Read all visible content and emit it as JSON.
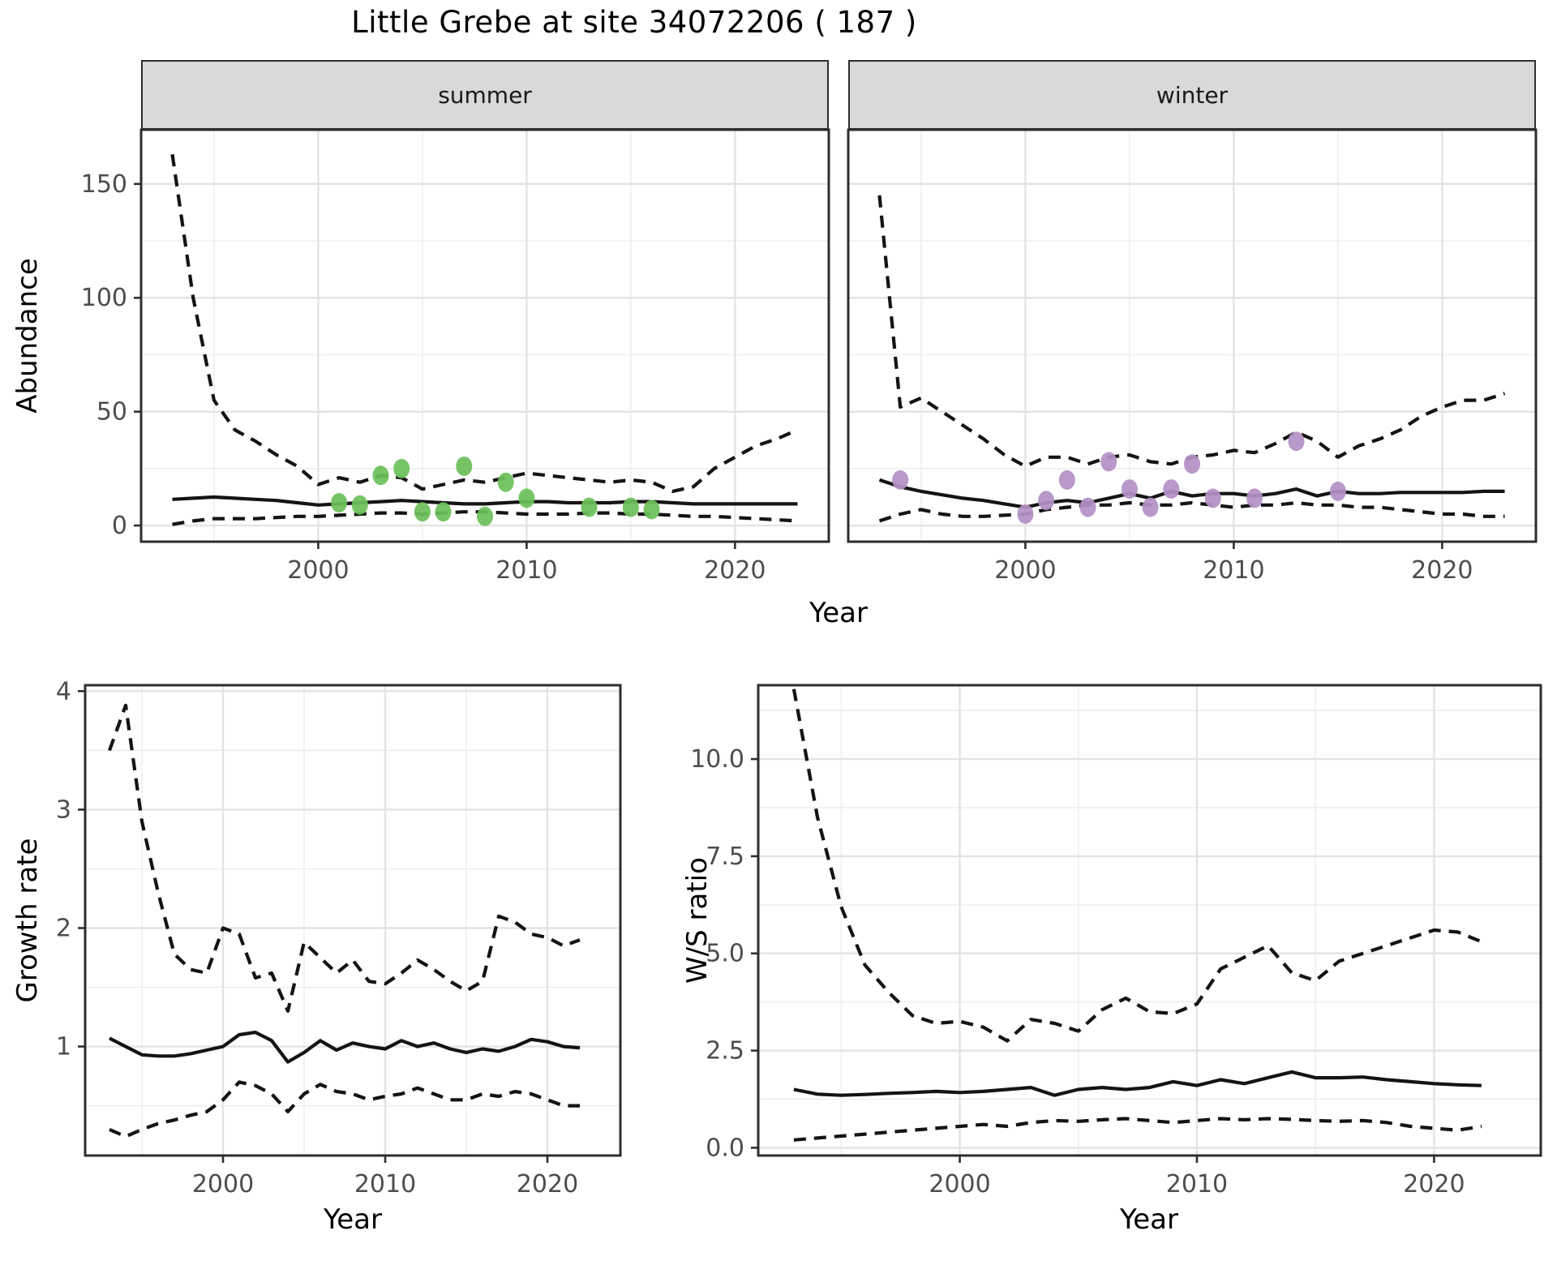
{
  "title": "Little Grebe at site 34072206 ( 187 )",
  "colors": {
    "summer_point": "#6CBF5A",
    "winter_point": "#B391C5",
    "line": "#141414",
    "grid_major": "#E3E3E3",
    "grid_minor": "#EFEFEF",
    "strip_bg": "#D9D9D9",
    "tick_text": "#4D4D4D",
    "border": "#2e2e2e"
  },
  "chart_data": [
    {
      "id": "abundance-summer",
      "type": "line",
      "facet_label": "summer",
      "xlabel": "Year",
      "ylabel": "Abundance",
      "x_range": [
        1991.5,
        2024.5
      ],
      "y_range": [
        -7.1,
        173.8
      ],
      "x_major": [
        2000,
        2010,
        2020
      ],
      "x_tick_labels": [
        "2000",
        "2010",
        "2020"
      ],
      "x_minor": [
        1995,
        2005,
        2015
      ],
      "y_major": [
        0,
        50,
        100,
        150
      ],
      "y_tick_labels": [
        "0",
        "50",
        "100",
        "150"
      ],
      "y_minor": [
        25,
        75,
        125
      ],
      "x": [
        1993,
        1994,
        1995,
        1996,
        1997,
        1998,
        1999,
        2000,
        2001,
        2002,
        2003,
        2004,
        2005,
        2006,
        2007,
        2008,
        2009,
        2010,
        2011,
        2012,
        2013,
        2014,
        2015,
        2016,
        2017,
        2018,
        2019,
        2020,
        2021,
        2022,
        2023
      ],
      "series": [
        {
          "name": "upper-ci",
          "line": "dashed",
          "values": [
            163,
            100,
            55,
            42,
            37,
            31,
            26,
            18,
            21,
            19,
            22,
            21,
            16,
            18,
            20,
            19,
            21,
            23,
            22,
            21,
            20,
            19,
            20,
            19,
            15,
            17,
            25,
            30,
            35,
            38,
            42
          ]
        },
        {
          "name": "median",
          "line": "solid",
          "values": [
            11.5,
            12,
            12.5,
            12,
            11.5,
            11,
            10,
            9,
            9.5,
            10,
            10.5,
            11,
            10.5,
            10,
            9.5,
            9.5,
            10,
            10.5,
            10.5,
            10,
            10,
            10,
            10.5,
            10.5,
            10,
            9.5,
            9.5,
            9.5,
            9.5,
            9.5,
            9.5
          ]
        },
        {
          "name": "lower-ci",
          "line": "dashed",
          "values": [
            0.5,
            2,
            3,
            3,
            3,
            3.5,
            4,
            4,
            4.5,
            5,
            5.5,
            5.5,
            5,
            5.5,
            6,
            6,
            5.5,
            5,
            5,
            5,
            5.5,
            5.5,
            5,
            5,
            4.5,
            4,
            4,
            3.5,
            3,
            2.5,
            2
          ]
        }
      ],
      "points": {
        "name": "observed-count",
        "color": "#6CBF5A",
        "x": [
          2001,
          2002,
          2003,
          2004,
          2005,
          2006,
          2007,
          2008,
          2009,
          2010,
          2013,
          2015,
          2016
        ],
        "y": [
          10,
          9,
          22,
          25,
          6,
          6,
          26,
          4,
          19,
          12,
          8,
          8,
          7
        ]
      }
    },
    {
      "id": "abundance-winter",
      "type": "line",
      "facet_label": "winter",
      "xlabel": "Year",
      "ylabel": "Abundance",
      "x_range": [
        1991.5,
        2024.5
      ],
      "y_range": [
        -7.1,
        173.8
      ],
      "x_major": [
        2000,
        2010,
        2020
      ],
      "x_tick_labels": [
        "2000",
        "2010",
        "2020"
      ],
      "x_minor": [
        1995,
        2005,
        2015
      ],
      "y_major": [
        0,
        50,
        100,
        150
      ],
      "y_tick_labels": [
        "0",
        "50",
        "100",
        "150"
      ],
      "y_minor": [
        25,
        75,
        125
      ],
      "x": [
        1993,
        1994,
        1995,
        1996,
        1997,
        1998,
        1999,
        2000,
        2001,
        2002,
        2003,
        2004,
        2005,
        2006,
        2007,
        2008,
        2009,
        2010,
        2011,
        2012,
        2013,
        2014,
        2015,
        2016,
        2017,
        2018,
        2019,
        2020,
        2021,
        2022,
        2023
      ],
      "series": [
        {
          "name": "upper-ci",
          "line": "dashed",
          "values": [
            145,
            52,
            56,
            50,
            44,
            38,
            31,
            26,
            30,
            30,
            27,
            30,
            31,
            28,
            27,
            30,
            31,
            33,
            32,
            36,
            41,
            37,
            30,
            35,
            38,
            42,
            48,
            52,
            55,
            55,
            58
          ]
        },
        {
          "name": "median",
          "line": "solid",
          "values": [
            20,
            17,
            15,
            13.5,
            12,
            11,
            9.5,
            8,
            10,
            11,
            10,
            12,
            14,
            12,
            15,
            13,
            14,
            14,
            13,
            14,
            16,
            13,
            15,
            14,
            14,
            14.5,
            14.5,
            14.5,
            14.5,
            15,
            15
          ]
        },
        {
          "name": "lower-ci",
          "line": "dashed",
          "values": [
            2,
            5,
            7,
            5,
            4,
            4,
            4.5,
            5,
            7,
            8,
            9,
            9,
            10,
            9,
            9,
            10,
            9,
            8,
            9,
            9,
            10,
            9,
            9,
            8,
            8,
            7,
            6,
            5,
            5,
            4,
            4
          ]
        }
      ],
      "points": {
        "name": "observed-count",
        "color": "#B391C5",
        "x": [
          1994,
          2000,
          2001,
          2002,
          2003,
          2004,
          2005,
          2006,
          2007,
          2008,
          2009,
          2011,
          2013,
          2015
        ],
        "y": [
          20,
          5,
          11,
          20,
          8,
          28,
          16,
          8,
          16,
          27,
          12,
          12,
          37,
          15
        ]
      }
    },
    {
      "id": "growth-rate",
      "type": "line",
      "facet_label": "",
      "xlabel": "Year",
      "ylabel": "Growth rate",
      "x_range": [
        1991.5,
        2024.5
      ],
      "y_range": [
        0.08,
        4.05
      ],
      "x_major": [
        2000,
        2010,
        2020
      ],
      "x_tick_labels": [
        "2000",
        "2010",
        "2020"
      ],
      "x_minor": [
        1995,
        2005,
        2015
      ],
      "y_major": [
        1,
        2,
        3,
        4
      ],
      "y_tick_labels": [
        "1",
        "2",
        "3",
        "4"
      ],
      "y_minor": [
        0.5,
        1.5,
        2.5,
        3.5
      ],
      "x": [
        1993,
        1994,
        1995,
        1996,
        1997,
        1998,
        1999,
        2000,
        2001,
        2002,
        2003,
        2004,
        2005,
        2006,
        2007,
        2008,
        2009,
        2010,
        2011,
        2012,
        2013,
        2014,
        2015,
        2016,
        2017,
        2018,
        2019,
        2020,
        2021,
        2022
      ],
      "series": [
        {
          "name": "upper-ci",
          "line": "dashed",
          "values": [
            3.5,
            3.88,
            2.9,
            2.3,
            1.78,
            1.65,
            1.62,
            2.0,
            1.95,
            1.58,
            1.62,
            1.3,
            1.88,
            1.75,
            1.62,
            1.73,
            1.55,
            1.53,
            1.62,
            1.73,
            1.65,
            1.55,
            1.47,
            1.55,
            2.1,
            2.05,
            1.95,
            1.92,
            1.85,
            1.9
          ]
        },
        {
          "name": "median",
          "line": "solid",
          "values": [
            1.07,
            1.0,
            0.93,
            0.92,
            0.92,
            0.94,
            0.97,
            1.0,
            1.1,
            1.12,
            1.05,
            0.87,
            0.95,
            1.05,
            0.97,
            1.03,
            1.0,
            0.98,
            1.05,
            1.0,
            1.03,
            0.98,
            0.95,
            0.98,
            0.96,
            1.0,
            1.06,
            1.04,
            1.0,
            0.99
          ]
        },
        {
          "name": "lower-ci",
          "line": "dashed",
          "values": [
            0.3,
            0.24,
            0.3,
            0.35,
            0.38,
            0.42,
            0.45,
            0.55,
            0.7,
            0.67,
            0.6,
            0.45,
            0.6,
            0.68,
            0.62,
            0.6,
            0.55,
            0.58,
            0.6,
            0.65,
            0.6,
            0.55,
            0.55,
            0.6,
            0.58,
            0.62,
            0.6,
            0.55,
            0.5,
            0.5
          ]
        }
      ],
      "points": null
    },
    {
      "id": "ws-ratio",
      "type": "line",
      "facet_label": "",
      "xlabel": "Year",
      "ylabel": "W/S ratio",
      "x_range": [
        1991.5,
        2024.5
      ],
      "y_range": [
        -0.2,
        11.9
      ],
      "x_major": [
        2000,
        2010,
        2020
      ],
      "x_tick_labels": [
        "2000",
        "2010",
        "2020"
      ],
      "x_minor": [
        1995,
        2005,
        2015
      ],
      "y_major": [
        0,
        2.5,
        5,
        7.5,
        10
      ],
      "y_tick_labels": [
        "0.0",
        "2.5",
        "5.0",
        "7.5",
        "10.0"
      ],
      "y_minor": [
        1.25,
        3.75,
        6.25,
        8.75,
        11.25
      ],
      "x": [
        1993,
        1994,
        1995,
        1996,
        1997,
        1998,
        1999,
        2000,
        2001,
        2002,
        2003,
        2004,
        2005,
        2006,
        2007,
        2008,
        2009,
        2010,
        2011,
        2012,
        2013,
        2014,
        2015,
        2016,
        2017,
        2018,
        2019,
        2020,
        2021,
        2022
      ],
      "series": [
        {
          "name": "upper-ci",
          "line": "dashed",
          "values": [
            11.8,
            8.5,
            6.2,
            4.7,
            4.0,
            3.4,
            3.2,
            3.25,
            3.1,
            2.75,
            3.3,
            3.2,
            3.0,
            3.55,
            3.85,
            3.5,
            3.45,
            3.7,
            4.6,
            4.9,
            5.2,
            4.5,
            4.3,
            4.8,
            5.0,
            5.2,
            5.4,
            5.6,
            5.55,
            5.3
          ]
        },
        {
          "name": "median",
          "line": "solid",
          "values": [
            1.5,
            1.38,
            1.35,
            1.37,
            1.4,
            1.42,
            1.45,
            1.42,
            1.45,
            1.5,
            1.55,
            1.35,
            1.5,
            1.55,
            1.5,
            1.55,
            1.7,
            1.6,
            1.75,
            1.65,
            1.8,
            1.95,
            1.8,
            1.8,
            1.82,
            1.75,
            1.7,
            1.65,
            1.62,
            1.6
          ]
        },
        {
          "name": "lower-ci",
          "line": "dashed",
          "values": [
            0.2,
            0.25,
            0.3,
            0.35,
            0.4,
            0.45,
            0.5,
            0.55,
            0.6,
            0.55,
            0.65,
            0.7,
            0.68,
            0.72,
            0.75,
            0.7,
            0.65,
            0.7,
            0.75,
            0.72,
            0.75,
            0.73,
            0.7,
            0.68,
            0.7,
            0.65,
            0.55,
            0.5,
            0.45,
            0.55
          ]
        }
      ],
      "points": null
    }
  ]
}
